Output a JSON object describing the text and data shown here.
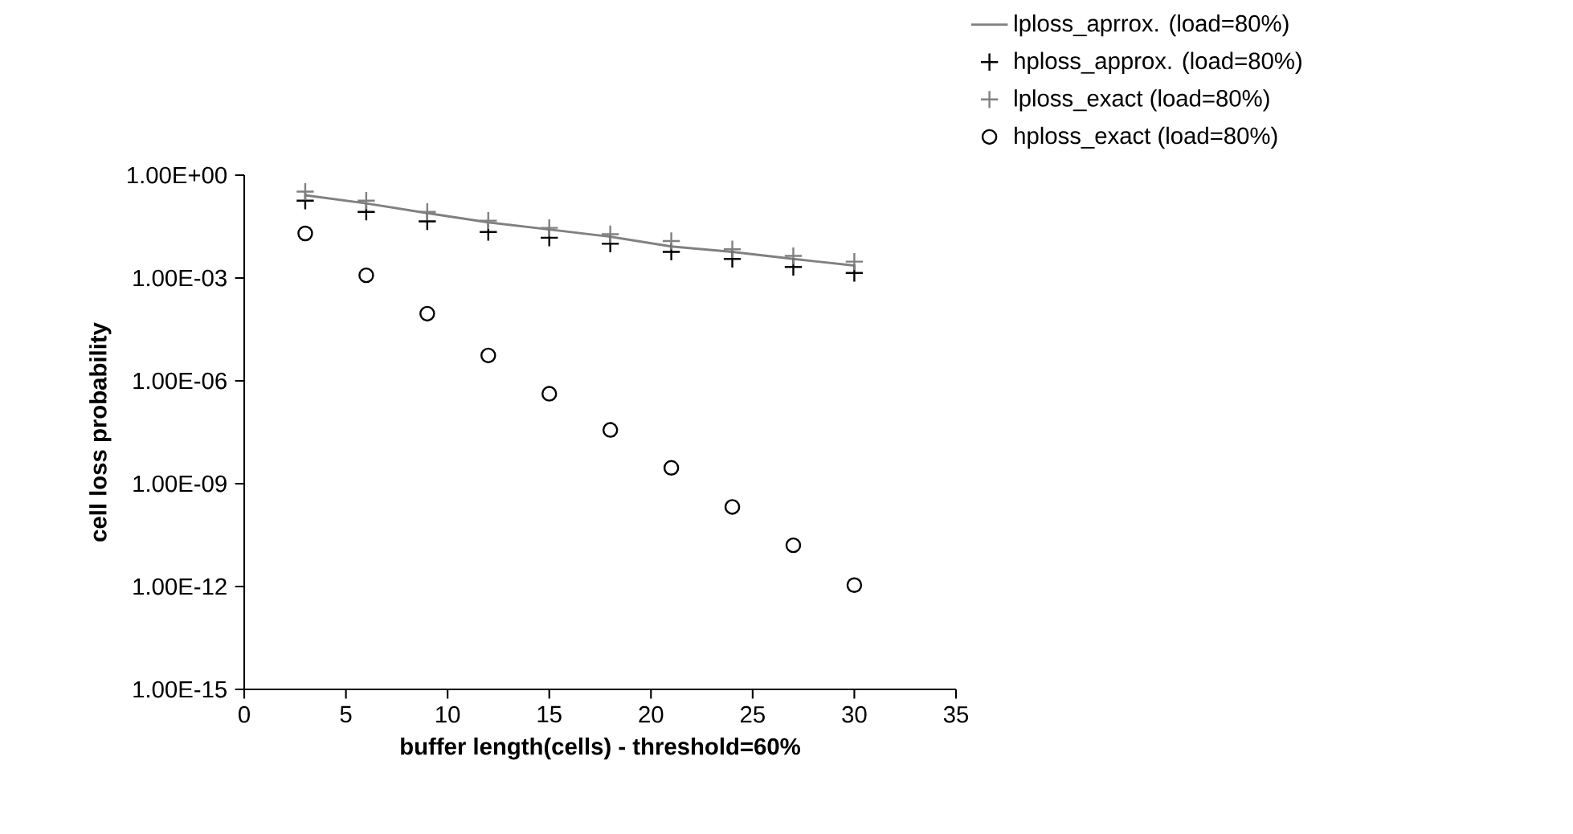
{
  "chart_data": {
    "type": "scatter",
    "xlabel": "buffer length(cells) - threshold=60%",
    "ylabel": "cell loss probability",
    "x": [
      3,
      6,
      9,
      12,
      15,
      18,
      21,
      24,
      27,
      30
    ],
    "series": [
      {
        "name": "lploss_aprrox. (load=80%)",
        "type": "line",
        "marker": "none",
        "color": "#808080",
        "values": [
          0.26,
          0.15,
          0.078,
          0.042,
          0.026,
          0.016,
          0.0083,
          0.0058,
          0.0036,
          0.0023
        ]
      },
      {
        "name": "hploss_approx. (load=80%)",
        "marker": "cross",
        "color": "#000000",
        "values": [
          0.18,
          0.085,
          0.045,
          0.022,
          0.015,
          0.01,
          0.0058,
          0.0036,
          0.0021,
          0.0014
        ]
      },
      {
        "name": "lploss_exact (load=80%)",
        "marker": "cross",
        "color": "#808080",
        "values": [
          0.33,
          0.18,
          0.085,
          0.047,
          0.029,
          0.019,
          0.012,
          0.0069,
          0.0044,
          0.003
        ]
      },
      {
        "name": "hploss_exact (load=80%)",
        "marker": "circle",
        "color": "#000000",
        "values": [
          0.02,
          0.0012,
          9.1e-05,
          5.5e-06,
          4.2e-07,
          3.7e-08,
          2.9e-09,
          2.1e-10,
          1.6e-11,
          1.1e-12
        ]
      }
    ],
    "log": "y",
    "xlim": [
      0,
      35
    ],
    "xticks": [
      0,
      5,
      10,
      15,
      20,
      25,
      30,
      35
    ],
    "ylim": [
      1e-15,
      1
    ],
    "yticks": [
      {
        "value": 1e-15,
        "label": "1.00E-15"
      },
      {
        "value": 1e-12,
        "label": "1.00E-12"
      },
      {
        "value": 1e-09,
        "label": "1.00E-09"
      },
      {
        "value": 1e-06,
        "label": "1.00E-06"
      },
      {
        "value": 0.001,
        "label": "1.00E-03"
      },
      {
        "value": 1,
        "label": "1.00E+00"
      }
    ],
    "grid": false,
    "legend": "top right"
  }
}
